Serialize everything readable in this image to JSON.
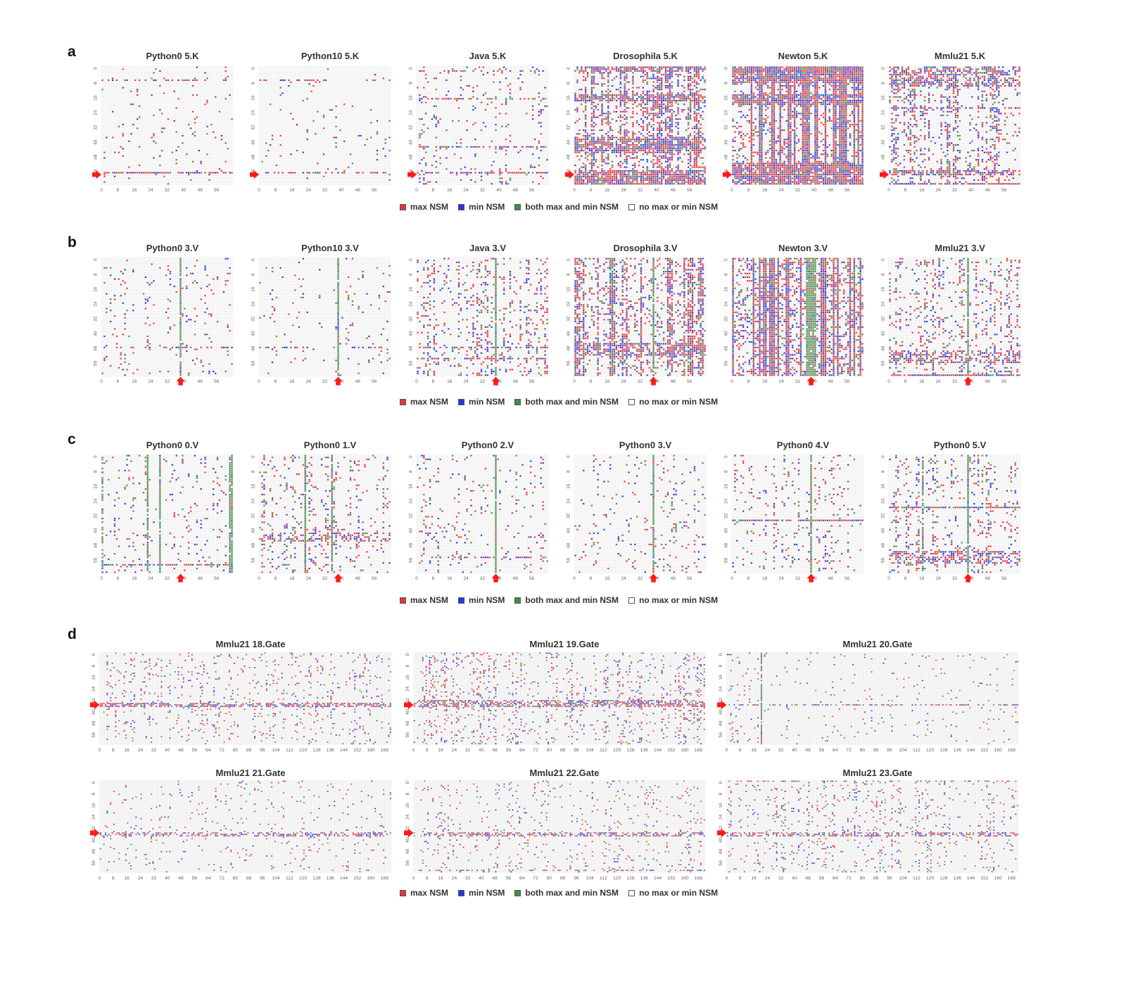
{
  "figure": {
    "colors": {
      "max": "#e8343a",
      "min": "#2b34e4",
      "both": "#3f8f45",
      "none": "#ffffff",
      "grid": "#dcdcdc"
    },
    "legend": {
      "max": "max NSM",
      "min": "min NSM",
      "both": "both max and min NSM",
      "none": "no max or min NSM"
    },
    "panels": [
      {
        "letter": "a",
        "titles": [
          "Python0 5.K",
          "Python10 5.K",
          "Java 5.K",
          "Drosophila 5.K",
          "Newton 5.K",
          "Mmlu21 5.K"
        ]
      },
      {
        "letter": "b",
        "titles": [
          "Python0 3.V",
          "Python10 3.V",
          "Java 3.V",
          "Drosophila 3.V",
          "Newton 3.V",
          "Mmlu21 3.V"
        ]
      },
      {
        "letter": "c",
        "titles": [
          "Python0 0.V",
          "Python0 1.V",
          "Python0 2.V",
          "Python0 3.V",
          "Python0 4.V",
          "Python0 5.V"
        ]
      },
      {
        "letter": "d",
        "titles": [
          "Mmlu21 18.Gate",
          "Mmlu21 19.Gate",
          "Mmlu21 20.Gate",
          "Mmlu21 21.Gate",
          "Mmlu21 22.Gate",
          "Mmlu21 23.Gate"
        ]
      }
    ]
  },
  "chart_data": [
    {
      "type": "heatmap",
      "panel": "a",
      "value_key": "0=no max or min NSM, 1=max NSM, 2=min NSM, 3=both max and min NSM",
      "rows": 64,
      "cols": 64,
      "x_ticks": [
        0,
        8,
        16,
        24,
        32,
        40,
        48,
        56
      ],
      "y_ticks": [
        0,
        8,
        16,
        24,
        32,
        40,
        48,
        56
      ],
      "marked_row": 58,
      "series": [
        {
          "name": "Python0 5.K",
          "density": 0.03,
          "row_bands": [
            {
              "rows": [
                7,
                7
              ],
              "density": 0.3
            },
            {
              "rows": [
                57,
                57
              ],
              "density": 0.75
            }
          ]
        },
        {
          "name": "Python10 5.K",
          "density": 0.02,
          "row_bands": [
            {
              "rows": [
                7,
                7
              ],
              "density": 0.25
            },
            {
              "rows": [
                57,
                57
              ],
              "density": 0.4
            }
          ]
        },
        {
          "name": "Java 5.K",
          "density": 0.06,
          "row_bands": [
            {
              "rows": [
                2,
                2
              ],
              "density": 0.35
            },
            {
              "rows": [
                17,
                17
              ],
              "density": 0.45
            },
            {
              "rows": [
                43,
                43
              ],
              "density": 0.55
            },
            {
              "rows": [
                57,
                57
              ],
              "density": 0.6
            }
          ]
        },
        {
          "name": "Drosophila 5.K",
          "density": 0.3,
          "row_bands": [
            {
              "rows": [
                0,
                2
              ],
              "density": 0.6
            },
            {
              "rows": [
                15,
                18
              ],
              "density": 0.7
            },
            {
              "rows": [
                38,
                46
              ],
              "density": 0.6
            },
            {
              "rows": [
                56,
                63
              ],
              "density": 0.8
            }
          ]
        },
        {
          "name": "Newton 5.K",
          "density": 0.45,
          "row_bands": [
            {
              "rows": [
                0,
                8
              ],
              "density": 0.85
            },
            {
              "rows": [
                15,
                20
              ],
              "density": 0.8
            },
            {
              "rows": [
                52,
                63
              ],
              "density": 0.8
            }
          ]
        },
        {
          "name": "Mmlu21 5.K",
          "density": 0.18,
          "row_bands": [
            {
              "rows": [
                0,
                10
              ],
              "density": 0.45
            },
            {
              "rows": [
                22,
                22
              ],
              "density": 0.6
            },
            {
              "rows": [
                56,
                58
              ],
              "density": 0.55
            },
            {
              "rows": [
                63,
                63
              ],
              "density": 0.7
            }
          ]
        }
      ]
    },
    {
      "type": "heatmap",
      "panel": "b",
      "value_key": "0=no max or min NSM, 1=max NSM, 2=min NSM, 3=both max and min NSM",
      "rows": 64,
      "cols": 64,
      "x_ticks": [
        0,
        8,
        16,
        24,
        32,
        40,
        48,
        56
      ],
      "y_ticks": [
        0,
        8,
        16,
        24,
        32,
        40,
        48,
        56
      ],
      "marked_col": 38,
      "series": [
        {
          "name": "Python0 3.V",
          "density": 0.04,
          "col_bands": [
            {
              "cols": [
                38,
                38
              ],
              "density": 0.95
            }
          ],
          "row_bands": [
            {
              "rows": [
                48,
                48
              ],
              "density": 0.3
            }
          ]
        },
        {
          "name": "Python10 3.V",
          "density": 0.03,
          "col_bands": [
            {
              "cols": [
                38,
                38
              ],
              "density": 0.95
            }
          ],
          "row_bands": [
            {
              "rows": [
                48,
                48
              ],
              "density": 0.45
            }
          ]
        },
        {
          "name": "Java 3.V",
          "density": 0.12,
          "col_bands": [
            {
              "cols": [
                38,
                38
              ],
              "density": 0.95
            }
          ],
          "row_bands": [
            {
              "rows": [
                48,
                48
              ],
              "density": 0.5
            },
            {
              "rows": [
                54,
                54
              ],
              "density": 0.55
            }
          ]
        },
        {
          "name": "Drosophila 3.V",
          "density": 0.32,
          "col_bands": [
            {
              "cols": [
                38,
                38
              ],
              "density": 0.9
            },
            {
              "cols": [
                18,
                18
              ],
              "density": 0.8
            }
          ],
          "row_bands": [
            {
              "rows": [
                46,
                52
              ],
              "density": 0.55
            }
          ]
        },
        {
          "name": "Newton 3.V",
          "density": 0.55,
          "col_bands": [
            {
              "cols": [
                36,
                40
              ],
              "density": 0.9
            }
          ]
        },
        {
          "name": "Mmlu21 3.V",
          "density": 0.12,
          "col_bands": [
            {
              "cols": [
                38,
                38
              ],
              "density": 0.95
            }
          ],
          "row_bands": [
            {
              "rows": [
                50,
                56
              ],
              "density": 0.45
            },
            {
              "rows": [
                63,
                63
              ],
              "density": 0.9
            }
          ]
        }
      ]
    },
    {
      "type": "heatmap",
      "panel": "c",
      "value_key": "0=no max or min NSM, 1=max NSM, 2=min NSM, 3=both max and min NSM",
      "rows": 64,
      "cols": 64,
      "x_ticks": [
        0,
        8,
        16,
        24,
        32,
        40,
        48,
        56
      ],
      "y_ticks": [
        0,
        8,
        16,
        24,
        32,
        40,
        48,
        56
      ],
      "marked_col": 38,
      "series": [
        {
          "name": "Python0 0.V",
          "density": 0.05,
          "col_bands": [
            {
              "cols": [
                22,
                22
              ],
              "density": 0.95
            },
            {
              "cols": [
                28,
                28
              ],
              "density": 0.9
            },
            {
              "cols": [
                62,
                63
              ],
              "density": 0.95
            },
            {
              "cols": [
                0,
                0
              ],
              "density": 0.6
            }
          ],
          "row_bands": [
            {
              "rows": [
                59,
                59
              ],
              "density": 0.7
            }
          ]
        },
        {
          "name": "Python0 1.V",
          "density": 0.1,
          "col_bands": [
            {
              "cols": [
                22,
                22
              ],
              "density": 0.95
            },
            {
              "cols": [
                35,
                35
              ],
              "density": 0.85
            }
          ],
          "row_bands": [
            {
              "rows": [
                42,
                46
              ],
              "density": 0.35
            }
          ]
        },
        {
          "name": "Python0 2.V",
          "density": 0.07,
          "col_bands": [
            {
              "cols": [
                38,
                38
              ],
              "density": 0.95
            }
          ],
          "row_bands": [
            {
              "rows": [
                55,
                55
              ],
              "density": 0.35
            }
          ]
        },
        {
          "name": "Python0 3.V",
          "density": 0.05,
          "col_bands": [
            {
              "cols": [
                38,
                38
              ],
              "density": 0.95
            }
          ],
          "row_bands": [
            {
              "rows": [
                48,
                48
              ],
              "density": 0.3
            }
          ]
        },
        {
          "name": "Python0 4.V",
          "density": 0.06,
          "col_bands": [
            {
              "cols": [
                38,
                38
              ],
              "density": 0.95
            }
          ],
          "row_bands": [
            {
              "rows": [
                35,
                35
              ],
              "density": 0.75
            }
          ]
        },
        {
          "name": "Python0 5.V",
          "density": 0.12,
          "col_bands": [
            {
              "cols": [
                38,
                38
              ],
              "density": 0.95
            },
            {
              "cols": [
                16,
                16
              ],
              "density": 0.7
            }
          ],
          "row_bands": [
            {
              "rows": [
                28,
                28
              ],
              "density": 0.95
            },
            {
              "rows": [
                52,
                58
              ],
              "density": 0.4
            }
          ]
        }
      ]
    },
    {
      "type": "heatmap",
      "panel": "d",
      "value_key": "0=no max or min NSM, 1=max NSM, 2=min NSM, 3=both max and min NSM",
      "rows": 64,
      "cols": 172,
      "x_ticks": [
        0,
        8,
        16,
        24,
        32,
        40,
        48,
        56,
        64,
        72,
        80,
        88,
        96,
        104,
        112,
        120,
        128,
        136,
        144,
        152,
        160,
        168
      ],
      "y_ticks": [
        0,
        8,
        16,
        24,
        32,
        40,
        48,
        56
      ],
      "marked_row": 36,
      "series": [
        {
          "name": "Mmlu21 18.Gate",
          "density": 0.06,
          "row_bands": [
            {
              "rows": [
                35,
                37
              ],
              "density": 0.6
            }
          ]
        },
        {
          "name": "Mmlu21 19.Gate",
          "density": 0.08,
          "row_bands": [
            {
              "rows": [
                33,
                37
              ],
              "density": 0.55
            }
          ]
        },
        {
          "name": "Mmlu21 20.Gate",
          "density": 0.025,
          "row_bands": [
            {
              "rows": [
                36,
                36
              ],
              "density": 0.45
            }
          ],
          "col_bands": [
            {
              "cols": [
                20,
                20
              ],
              "density": 0.8
            }
          ]
        },
        {
          "name": "Mmlu21 21.Gate",
          "density": 0.03,
          "row_bands": [
            {
              "rows": [
                36,
                38
              ],
              "density": 0.45
            }
          ]
        },
        {
          "name": "Mmlu21 22.Gate",
          "density": 0.045,
          "row_bands": [
            {
              "rows": [
                36,
                38
              ],
              "density": 0.5
            },
            {
              "rows": [
                62,
                62
              ],
              "density": 0.3
            }
          ]
        },
        {
          "name": "Mmlu21 23.Gate",
          "density": 0.07,
          "row_bands": [
            {
              "rows": [
                36,
                38
              ],
              "density": 0.5
            },
            {
              "rows": [
                0,
                0
              ],
              "density": 0.3
            }
          ]
        }
      ]
    }
  ]
}
